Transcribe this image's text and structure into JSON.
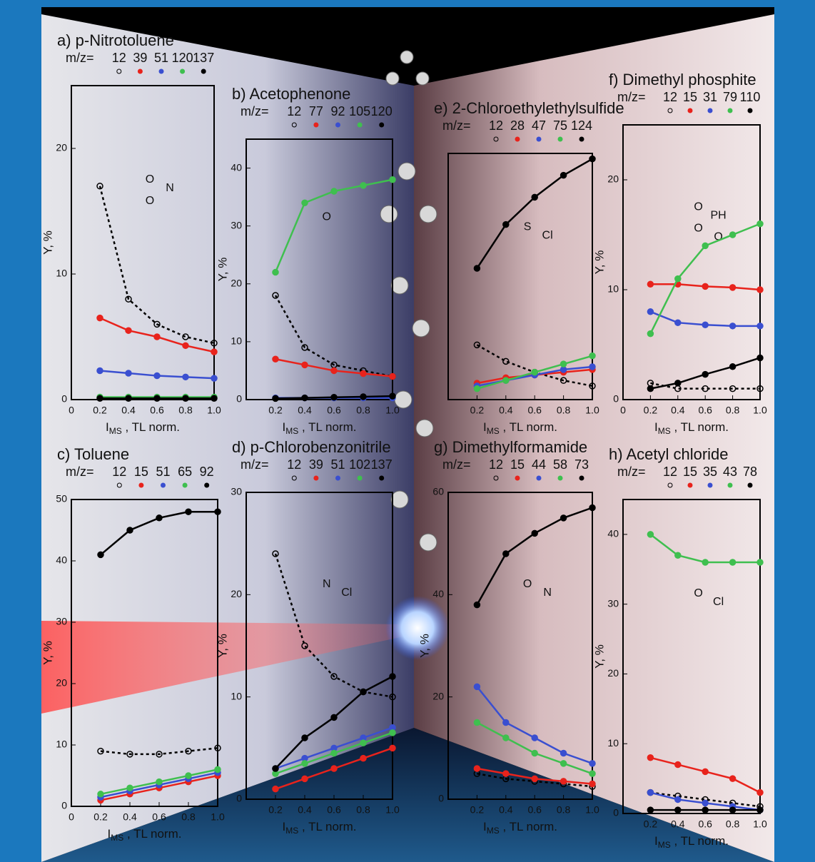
{
  "chart_data": [
    {
      "type": "line",
      "title": "a) p-Nitrotoluene",
      "legend_title": "m/z=",
      "x": [
        0.2,
        0.4,
        0.6,
        0.8,
        1.0
      ],
      "series": [
        {
          "name": "12",
          "color": "#000000",
          "marker": "open",
          "values": [
            17,
            8,
            6,
            5,
            4.5
          ]
        },
        {
          "name": "39",
          "color": "#e8231c",
          "values": [
            6.5,
            5.5,
            5,
            4.3,
            3.8
          ]
        },
        {
          "name": "51",
          "color": "#3a4fd0",
          "values": [
            2.3,
            2.1,
            1.9,
            1.8,
            1.7
          ]
        },
        {
          "name": "120",
          "color": "#3fbf4f",
          "values": [
            0.2,
            0.2,
            0.2,
            0.2,
            0.2
          ]
        },
        {
          "name": "137",
          "color": "#000000",
          "values": [
            0.1,
            0.1,
            0.1,
            0.1,
            0.1
          ]
        }
      ],
      "ylabel": "Y, %",
      "xlabel": {
        "main": "I",
        "sub": "MS",
        "rest": " , TL norm."
      },
      "xlim": [
        0,
        1
      ],
      "xticks": [
        0,
        0.2,
        0.4,
        0.6,
        0.8,
        {
          "value": 1,
          "label": "1.0"
        }
      ],
      "ylim": [
        0,
        25
      ],
      "yticks": [
        0,
        10,
        20
      ],
      "structure_labels": [
        "O",
        "N",
        "O"
      ]
    },
    {
      "type": "line",
      "title": "b) Acetophenone",
      "legend_title": "m/z=",
      "x": [
        0.2,
        0.4,
        0.6,
        0.8,
        1.0
      ],
      "series": [
        {
          "name": "12",
          "color": "#000000",
          "marker": "open",
          "values": [
            18,
            9,
            6,
            5,
            4
          ]
        },
        {
          "name": "77",
          "color": "#e8231c",
          "values": [
            7,
            6,
            5,
            4.5,
            4
          ]
        },
        {
          "name": "92",
          "color": "#3a4fd0",
          "values": [
            0.3,
            0.3,
            0.3,
            0.3,
            0.3
          ]
        },
        {
          "name": "105",
          "color": "#3fbf4f",
          "values": [
            22,
            34,
            36,
            37,
            38
          ]
        },
        {
          "name": "120",
          "color": "#000000",
          "values": [
            0.2,
            0.3,
            0.4,
            0.5,
            0.6
          ]
        }
      ],
      "ylabel": "Y, %",
      "xlabel": {
        "main": "I",
        "sub": "MS",
        "rest": " , TL norm."
      },
      "xlim": [
        0,
        1
      ],
      "xticks": [
        0.2,
        0.4,
        0.6,
        0.8,
        {
          "value": 1,
          "label": "1.0"
        }
      ],
      "ylim": [
        0,
        45
      ],
      "yticks": [
        0,
        10,
        20,
        30,
        40
      ],
      "structure_labels": [
        "O"
      ]
    },
    {
      "type": "line",
      "title": "e) 2-Chloroethylethylsulfide",
      "legend_title": "m/z=",
      "x": [
        0.2,
        0.4,
        0.6,
        0.8,
        1.0
      ],
      "series": [
        {
          "name": "12",
          "color": "#000000",
          "marker": "open",
          "values": [
            10,
            7,
            5,
            3.5,
            2.5
          ]
        },
        {
          "name": "28",
          "color": "#e8231c",
          "values": [
            3,
            4,
            4.5,
            5,
            5.5
          ]
        },
        {
          "name": "47",
          "color": "#3a4fd0",
          "values": [
            2.5,
            3.5,
            4.5,
            5.5,
            6
          ]
        },
        {
          "name": "75",
          "color": "#3fbf4f",
          "values": [
            2,
            3.5,
            5,
            6.5,
            8
          ]
        },
        {
          "name": "124",
          "color": "#000000",
          "values": [
            24,
            32,
            37,
            41,
            44
          ]
        }
      ],
      "xlabel": {
        "main": "I",
        "sub": "MS",
        "rest": " , TL norm."
      },
      "xlim": [
        0,
        1
      ],
      "xticks": [
        0.2,
        0.4,
        0.6,
        0.8,
        {
          "value": 1,
          "label": "1.0"
        }
      ],
      "ylim": [
        0,
        45
      ],
      "structure_labels": [
        "S",
        "Cl"
      ]
    },
    {
      "type": "line",
      "title": "f) Dimethyl phosphite",
      "legend_title": "m/z=",
      "x": [
        0.2,
        0.4,
        0.6,
        0.8,
        1.0
      ],
      "series": [
        {
          "name": "12",
          "color": "#000000",
          "marker": "open",
          "values": [
            1.5,
            1,
            1,
            1,
            1
          ]
        },
        {
          "name": "15",
          "color": "#e8231c",
          "values": [
            10.5,
            10.5,
            10.3,
            10.2,
            10
          ]
        },
        {
          "name": "31",
          "color": "#3a4fd0",
          "values": [
            8,
            7,
            6.8,
            6.7,
            6.7
          ]
        },
        {
          "name": "79",
          "color": "#3fbf4f",
          "values": [
            6,
            11,
            14,
            15,
            16
          ]
        },
        {
          "name": "110",
          "color": "#000000",
          "values": [
            1,
            1.5,
            2.3,
            3,
            3.8
          ]
        }
      ],
      "ylabel": "Y, %",
      "xlabel": {
        "main": "I",
        "sub": "MS",
        "rest": " , TL norm."
      },
      "xlim": [
        0,
        1
      ],
      "xticks": [
        0,
        0.2,
        0.4,
        0.6,
        0.8,
        {
          "value": 1,
          "label": "1.0"
        }
      ],
      "ylim": [
        0,
        25
      ],
      "yticks": [
        0,
        10,
        20
      ],
      "structure_labels": [
        "O",
        "PH",
        "O",
        "O"
      ]
    },
    {
      "type": "line",
      "title": "c) Toluene",
      "legend_title": "m/z=",
      "x": [
        0.2,
        0.4,
        0.6,
        0.8,
        1.0
      ],
      "series": [
        {
          "name": "12",
          "color": "#000000",
          "marker": "open",
          "values": [
            9,
            8.5,
            8.5,
            9,
            9.5
          ]
        },
        {
          "name": "15",
          "color": "#e8231c",
          "values": [
            1,
            2,
            3,
            4,
            5
          ]
        },
        {
          "name": "51",
          "color": "#3a4fd0",
          "values": [
            1.5,
            2.5,
            3.5,
            4.5,
            5.5
          ]
        },
        {
          "name": "65",
          "color": "#3fbf4f",
          "values": [
            2,
            3,
            4,
            5,
            6
          ]
        },
        {
          "name": "92",
          "color": "#000000",
          "values": [
            41,
            45,
            47,
            48,
            48
          ]
        }
      ],
      "ylabel": "Y, %",
      "xlabel": {
        "main": "I",
        "sub": "MS",
        "rest": " , TL norm."
      },
      "xlim": [
        0,
        1
      ],
      "xticks": [
        0,
        0.2,
        0.4,
        0.6,
        0.8,
        {
          "value": 1,
          "label": "1.0"
        }
      ],
      "ylim": [
        0,
        50
      ],
      "yticks": [
        0,
        10,
        20,
        30,
        40,
        50
      ]
    },
    {
      "type": "line",
      "title": "d) p-Chlorobenzonitrile",
      "legend_title": "m/z=",
      "x": [
        0.2,
        0.4,
        0.6,
        0.8,
        1.0
      ],
      "series": [
        {
          "name": "12",
          "color": "#000000",
          "marker": "open",
          "values": [
            24,
            15,
            12,
            10.5,
            10
          ]
        },
        {
          "name": "39",
          "color": "#e8231c",
          "values": [
            1,
            2,
            3,
            4,
            5
          ]
        },
        {
          "name": "51",
          "color": "#3a4fd0",
          "values": [
            3,
            4,
            5,
            6,
            7
          ]
        },
        {
          "name": "102",
          "color": "#3fbf4f",
          "values": [
            2.5,
            3.5,
            4.5,
            5.5,
            6.5
          ]
        },
        {
          "name": "137",
          "color": "#000000",
          "values": [
            3,
            6,
            8,
            10.5,
            12
          ]
        }
      ],
      "ylabel": "Y, %",
      "xlabel": {
        "main": "I",
        "sub": "MS",
        "rest": " , TL norm."
      },
      "xlim": [
        0,
        1
      ],
      "xticks": [
        0.2,
        0.4,
        0.6,
        0.8,
        {
          "value": 1,
          "label": "1.0"
        }
      ],
      "ylim": [
        0,
        30
      ],
      "yticks": [
        0,
        10,
        20,
        30
      ],
      "structure_labels": [
        "N",
        "Cl"
      ]
    },
    {
      "type": "line",
      "title": "g) Dimethylformamide",
      "legend_title": "m/z=",
      "x": [
        0.2,
        0.4,
        0.6,
        0.8,
        1.0
      ],
      "series": [
        {
          "name": "12",
          "color": "#000000",
          "marker": "open",
          "values": [
            5,
            4,
            3.5,
            3,
            2.5
          ]
        },
        {
          "name": "15",
          "color": "#e8231c",
          "values": [
            6,
            5,
            4,
            3.5,
            3
          ]
        },
        {
          "name": "44",
          "color": "#3a4fd0",
          "values": [
            22,
            15,
            12,
            9,
            7
          ]
        },
        {
          "name": "58",
          "color": "#3fbf4f",
          "values": [
            15,
            12,
            9,
            7,
            5
          ]
        },
        {
          "name": "73",
          "color": "#000000",
          "values": [
            38,
            48,
            52,
            55,
            57
          ]
        }
      ],
      "ylabel": "Y, %",
      "xlabel": {
        "main": "I",
        "sub": "MS",
        "rest": " , TL norm."
      },
      "xlim": [
        0,
        1
      ],
      "xticks": [
        0.2,
        0.4,
        0.6,
        0.8,
        {
          "value": 1,
          "label": "1.0"
        }
      ],
      "ylim": [
        0,
        60
      ],
      "yticks": [
        0,
        20,
        40,
        60
      ],
      "structure_labels": [
        "O",
        "N"
      ]
    },
    {
      "type": "line",
      "title": "h) Acetyl chloride",
      "legend_title": "m/z=",
      "x": [
        0.2,
        0.4,
        0.6,
        0.8,
        1.0
      ],
      "series": [
        {
          "name": "12",
          "color": "#000000",
          "marker": "open",
          "values": [
            3,
            2.5,
            2,
            1.5,
            1
          ]
        },
        {
          "name": "15",
          "color": "#e8231c",
          "values": [
            8,
            7,
            6,
            5,
            3
          ]
        },
        {
          "name": "35",
          "color": "#3a4fd0",
          "values": [
            3,
            2,
            1.5,
            1,
            0.5
          ]
        },
        {
          "name": "43",
          "color": "#3fbf4f",
          "values": [
            40,
            37,
            36,
            36,
            36
          ]
        },
        {
          "name": "78",
          "color": "#000000",
          "values": [
            0.5,
            0.5,
            0.5,
            0.5,
            0.5
          ]
        }
      ],
      "ylabel": "Y, %",
      "xlabel": {
        "main": "I",
        "sub": "MS",
        "rest": " , TL norm."
      },
      "xlim": [
        0,
        1
      ],
      "xticks": [
        0.2,
        0.4,
        0.6,
        0.8,
        {
          "value": 1,
          "label": "1.0"
        }
      ],
      "ylim": [
        0,
        45
      ],
      "yticks": [
        0,
        10,
        20,
        30,
        40
      ],
      "structure_labels": [
        "O",
        "Cl"
      ]
    }
  ]
}
